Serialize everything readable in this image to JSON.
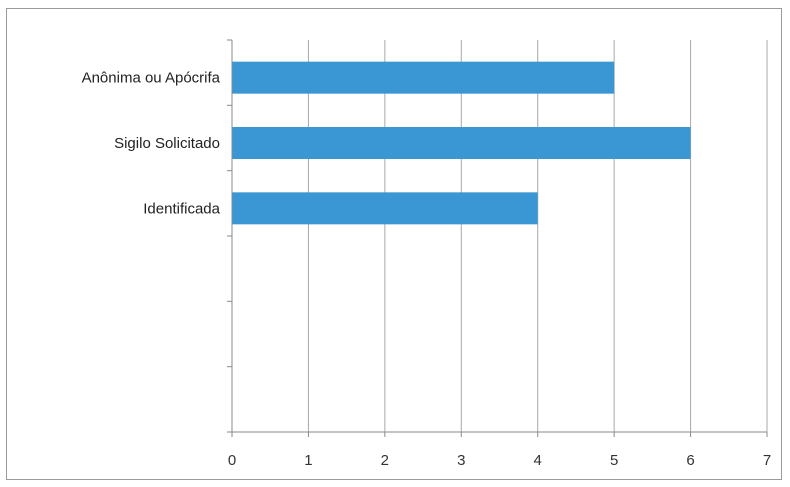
{
  "chart_data": {
    "type": "bar",
    "orientation": "horizontal",
    "categories": [
      "Anônima ou Apócrifa",
      "Sigilo Solicitado",
      "Identificada"
    ],
    "values": [
      5,
      6,
      4
    ],
    "xlim": [
      0,
      7
    ],
    "xticks": [
      "0",
      "1",
      "2",
      "3",
      "4",
      "5",
      "6",
      "7"
    ],
    "grid": true,
    "bar_color": "#3a97d4",
    "gridline_color": "#a8a8a8"
  }
}
